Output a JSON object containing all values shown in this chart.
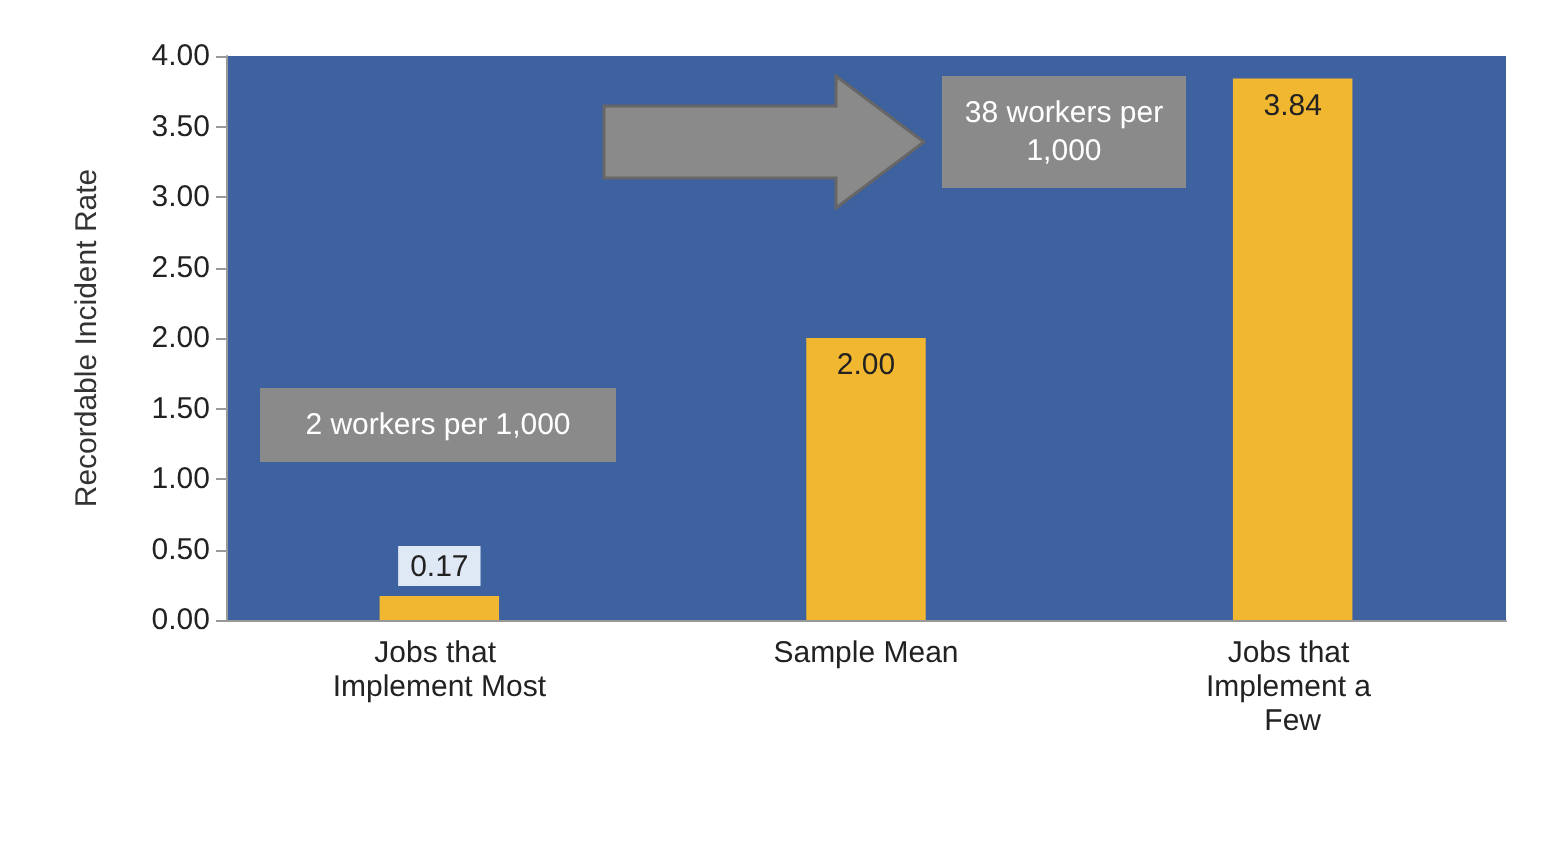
{
  "chart_data": {
    "type": "bar",
    "ylabel": "Recordable Incident Rate",
    "categories": [
      "Jobs that Implement Most",
      "Sample Mean",
      "Jobs that Implement a Few"
    ],
    "values": [
      0.17,
      2.0,
      3.84
    ],
    "value_labels": [
      "0.17",
      "2.00",
      "3.84"
    ],
    "color": "#f2b731",
    "ylim": [
      0,
      4
    ],
    "yticks": [
      {
        "value": 0,
        "label": "0.00"
      },
      {
        "value": 0.5,
        "label": "0.50"
      },
      {
        "value": 1,
        "label": "1.00"
      },
      {
        "value": 1.5,
        "label": "1.50"
      },
      {
        "value": 2,
        "label": "2.00"
      },
      {
        "value": 2.5,
        "label": "2.50"
      },
      {
        "value": 3,
        "label": "3.00"
      },
      {
        "value": 3.5,
        "label": "3.50"
      },
      {
        "value": 4,
        "label": "4.00"
      }
    ],
    "grid": false,
    "annotations": [
      "2 workers per 1,000",
      "38 workers per 1,000"
    ]
  }
}
